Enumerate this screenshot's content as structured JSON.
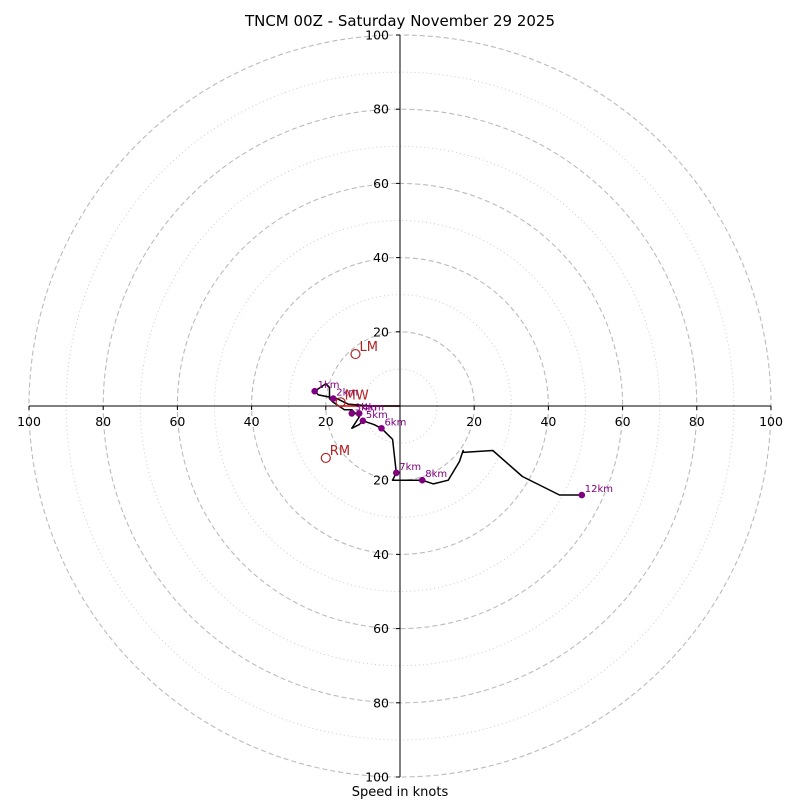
{
  "chart_data": {
    "type": "hodograph",
    "title": "TNCM 00Z - Saturday November 29 2025",
    "xlabel": "Speed in knots",
    "units": "knots",
    "axis_range": [
      -100,
      100
    ],
    "ring_major": [
      20,
      40,
      60,
      80,
      100
    ],
    "ring_minor": [
      10,
      30,
      50,
      70,
      90
    ],
    "x_tick_labels": [
      "100",
      "80",
      "60",
      "40",
      "20",
      "20",
      "40",
      "60",
      "80",
      "100"
    ],
    "x_tick_values": [
      -100,
      -80,
      -60,
      -40,
      -20,
      20,
      40,
      60,
      80,
      100
    ],
    "y_tick_labels": [
      "100",
      "80",
      "60",
      "40",
      "20",
      "20",
      "40",
      "60",
      "80",
      "100"
    ],
    "y_tick_values": [
      100,
      80,
      60,
      40,
      20,
      -20,
      -40,
      -60,
      -80,
      -100
    ],
    "hodo_line": [
      [
        0,
        0
      ],
      [
        -8,
        0
      ],
      [
        -14,
        0.5
      ],
      [
        -16,
        1.5
      ],
      [
        -17,
        2
      ],
      [
        -22,
        3
      ],
      [
        -23,
        4
      ],
      [
        -20,
        6
      ],
      [
        -19,
        5
      ],
      [
        -19,
        2
      ],
      [
        -18,
        1
      ],
      [
        -15,
        -1
      ],
      [
        -13,
        -1
      ],
      [
        -12,
        -2
      ],
      [
        -11,
        -3
      ],
      [
        -13,
        -6
      ],
      [
        -11,
        -5
      ],
      [
        -10,
        -4
      ],
      [
        -7,
        -5
      ],
      [
        -5,
        -6
      ],
      [
        -3,
        -8
      ],
      [
        -2,
        -9
      ],
      [
        -1,
        -18
      ],
      [
        -2,
        -20
      ],
      [
        0,
        -20
      ],
      [
        6,
        -20
      ],
      [
        9,
        -21
      ],
      [
        13,
        -20
      ],
      [
        16,
        -15
      ],
      [
        17,
        -12
      ],
      [
        17,
        -12.5
      ],
      [
        25,
        -12
      ],
      [
        33,
        -19
      ],
      [
        43,
        -24
      ],
      [
        49,
        -24
      ]
    ],
    "height_markers": [
      {
        "label": "1km",
        "u": -23,
        "v": 4
      },
      {
        "label": "2km",
        "u": -18,
        "v": 2
      },
      {
        "label": "3km",
        "u": -13,
        "v": -2
      },
      {
        "label": "4km",
        "u": -11,
        "v": -2
      },
      {
        "label": "5km",
        "u": -10,
        "v": -4
      },
      {
        "label": "6km",
        "u": -5,
        "v": -6
      },
      {
        "label": "7km",
        "u": -1,
        "v": -18
      },
      {
        "label": "8km",
        "u": 6,
        "v": -20
      },
      {
        "label": "12km",
        "u": 49,
        "v": -24
      }
    ],
    "storm_motion": [
      {
        "label": "LM",
        "u": -12,
        "v": 14
      },
      {
        "label": "MW",
        "u": -16,
        "v": 1
      },
      {
        "label": "RM",
        "u": -20,
        "v": -14
      }
    ],
    "shear_vector": {
      "from_u": 0,
      "from_v": 0,
      "to_u": -16,
      "to_v": 0
    },
    "colors": {
      "hodo_line": "#000000",
      "height_marker": "#800080",
      "storm_motion": "#b22222",
      "shear_vector": "#dd0000",
      "grid_major": "#bbbbbb",
      "grid_minor": "#cccccc"
    }
  }
}
